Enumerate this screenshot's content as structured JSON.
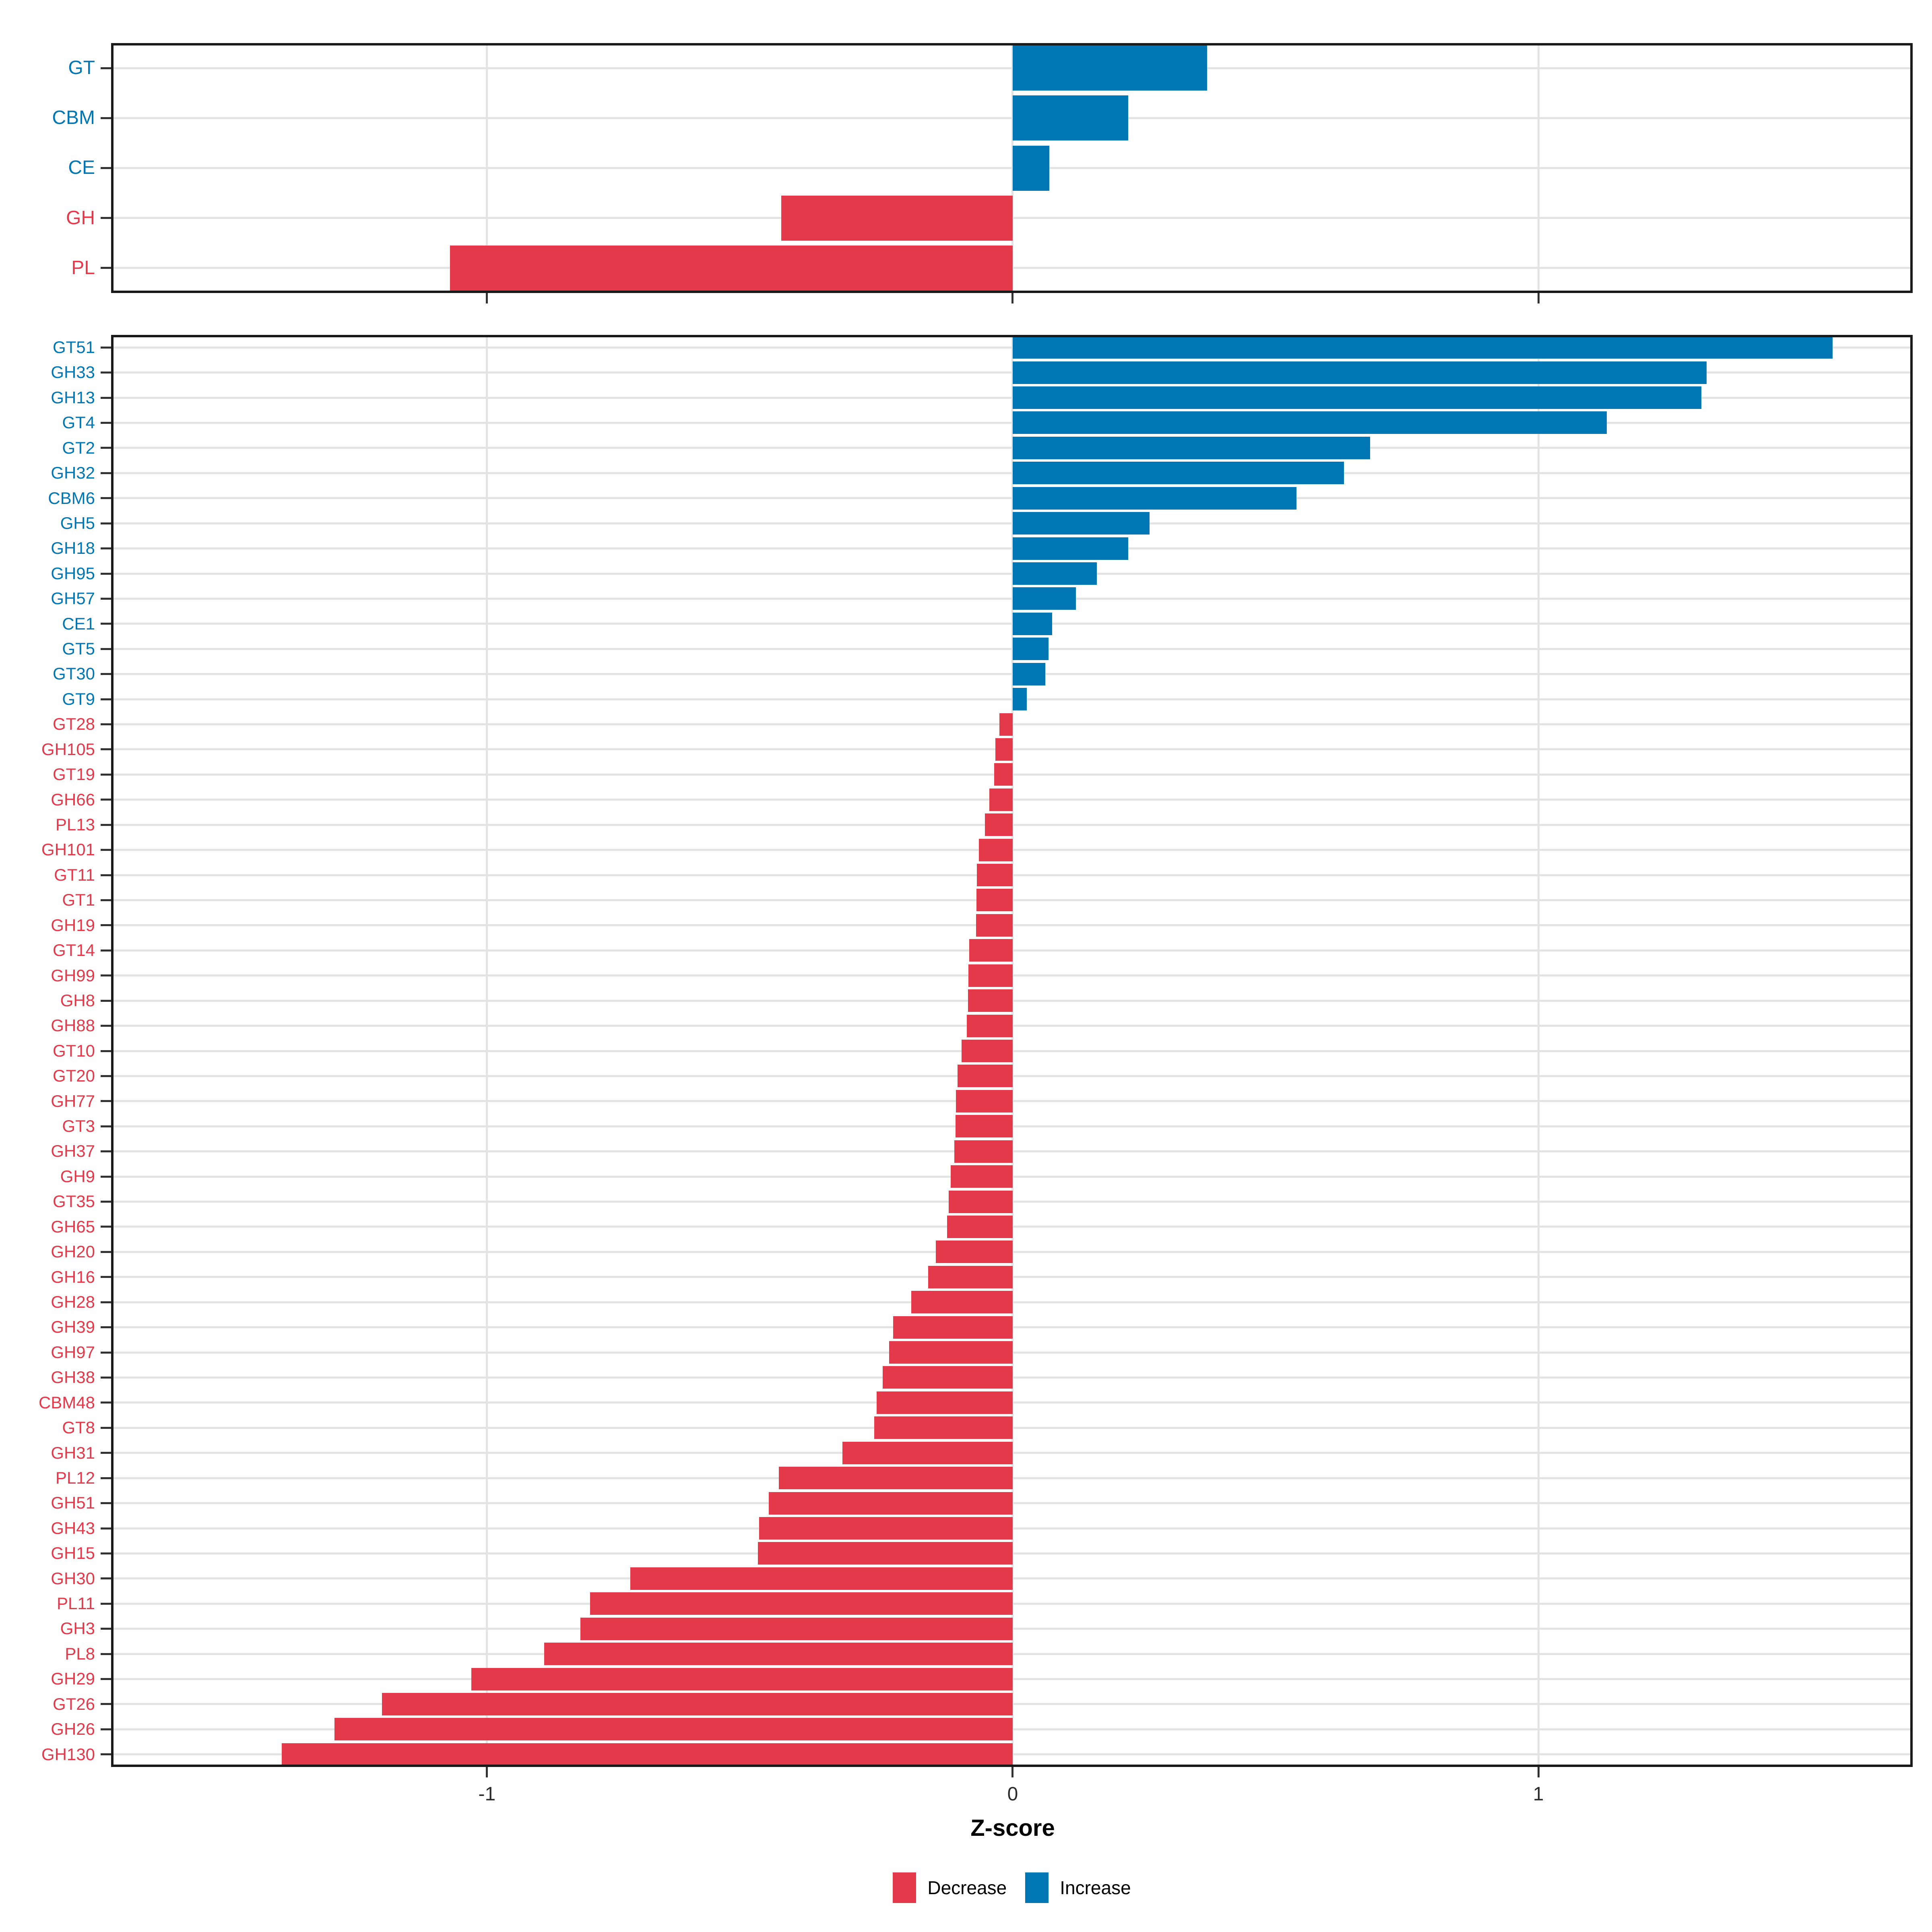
{
  "colors": {
    "decrease": "#E4394A",
    "increase": "#0077B4",
    "grid": "#e3e3e3",
    "panel_border": "#1a1a1a",
    "tick": "#333333"
  },
  "axis": {
    "xlabel": "Z-score",
    "ticks": [
      -1,
      0,
      1
    ],
    "tick_labels": [
      "-1",
      "0",
      "1"
    ],
    "xlim": [
      -1.715,
      1.712
    ]
  },
  "legend": [
    {
      "label": "Decrease",
      "color": "#E4394A"
    },
    {
      "label": "Increase",
      "color": "#0077B4"
    }
  ],
  "chart_data": [
    {
      "type": "bar",
      "orientation": "horizontal",
      "panel": "cazyme-classes",
      "categories": [
        "GT",
        "CBM",
        "CE",
        "GH",
        "PL"
      ],
      "values": [
        0.37,
        0.22,
        0.07,
        -0.44,
        -1.07
      ],
      "xlim": [
        -1.715,
        1.712
      ],
      "grid": true,
      "legend_position": "bottom"
    },
    {
      "type": "bar",
      "orientation": "horizontal",
      "panel": "cazyme-families",
      "xlabel": "Z-score",
      "categories": [
        "GT51",
        "GH33",
        "GH13",
        "GT4",
        "GT2",
        "GH32",
        "CBM6",
        "GH5",
        "GH18",
        "GH95",
        "GH57",
        "CE1",
        "GT5",
        "GT30",
        "GT9",
        "GT28",
        "GH105",
        "GT19",
        "GH66",
        "PL13",
        "GH101",
        "GT11",
        "GT1",
        "GH19",
        "GT14",
        "GH99",
        "GH8",
        "GH88",
        "GT10",
        "GT20",
        "GH77",
        "GT3",
        "GH37",
        "GH9",
        "GT35",
        "GH65",
        "GH20",
        "GH16",
        "GH28",
        "GH39",
        "GH97",
        "GH38",
        "CBM48",
        "GT8",
        "GH31",
        "PL12",
        "GH51",
        "GH43",
        "GH15",
        "GH30",
        "PL11",
        "GH3",
        "PL8",
        "GH29",
        "GT26",
        "GH26",
        "GH130"
      ],
      "values": [
        1.56,
        1.32,
        1.31,
        1.13,
        0.68,
        0.63,
        0.54,
        0.26,
        0.22,
        0.16,
        0.12,
        0.075,
        0.068,
        0.062,
        0.027,
        -0.025,
        -0.033,
        -0.035,
        -0.044,
        -0.053,
        -0.064,
        -0.068,
        -0.069,
        -0.07,
        -0.083,
        -0.084,
        -0.085,
        -0.087,
        -0.097,
        -0.105,
        -0.108,
        -0.109,
        -0.111,
        -0.118,
        -0.122,
        -0.125,
        -0.146,
        -0.161,
        -0.193,
        -0.227,
        -0.235,
        -0.247,
        -0.259,
        -0.263,
        -0.324,
        -0.445,
        -0.464,
        -0.482,
        -0.485,
        -0.727,
        -0.804,
        -0.822,
        -0.891,
        -1.03,
        -1.2,
        -1.29,
        -1.39
      ],
      "xlim": [
        -1.715,
        1.712
      ],
      "grid": true
    }
  ]
}
